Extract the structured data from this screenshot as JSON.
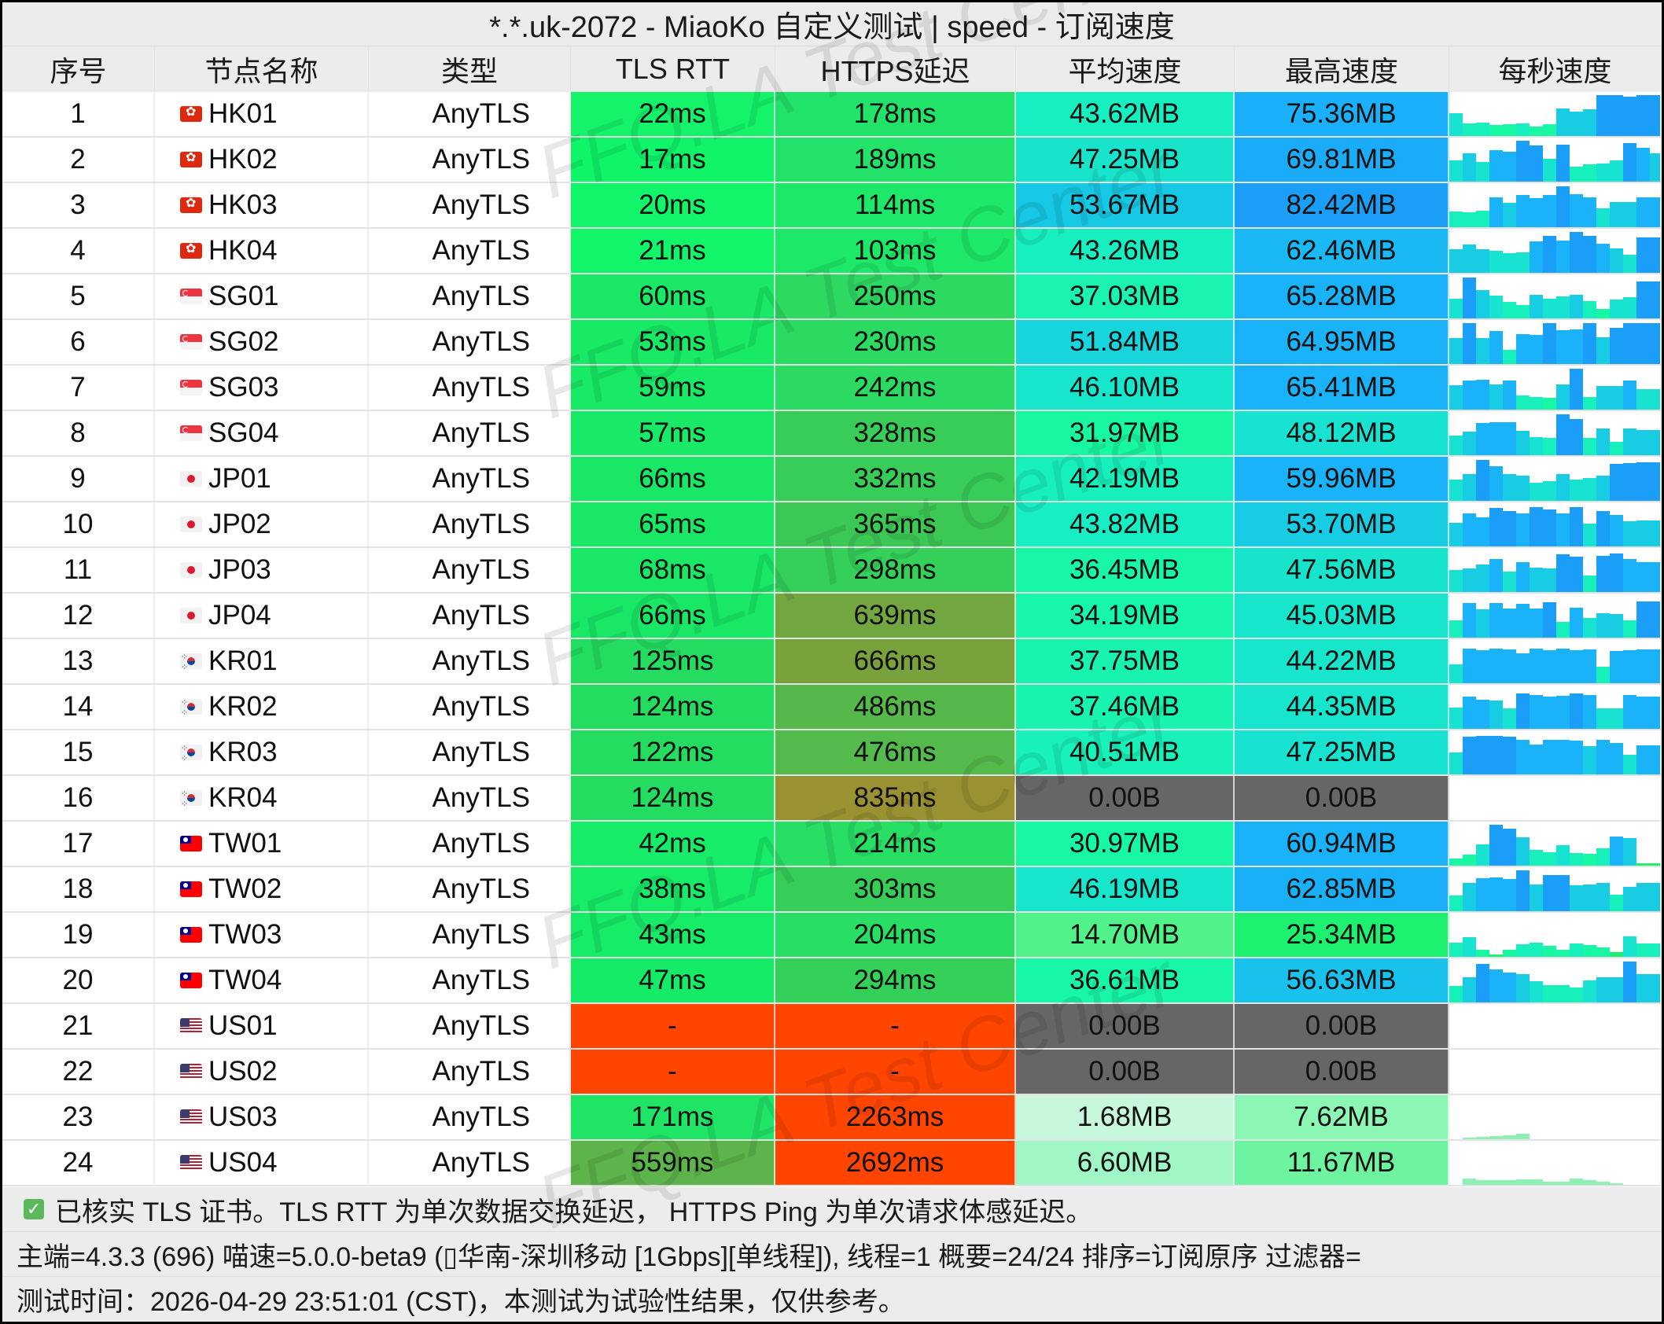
{
  "window": {
    "title": "*.*.uk-2072 - MiaoKo 自定义测试 | speed - 订阅速度"
  },
  "table": {
    "headers": [
      "序号",
      "节点名称",
      "类型",
      "TLS RTT",
      "HTTPS延迟",
      "平均速度",
      "最高速度",
      "每秒速度"
    ],
    "rows": [
      {
        "idx": "1",
        "flag": "hk",
        "name": "HK01",
        "type": "AnyTLS",
        "tls": "22ms",
        "https": "178ms",
        "avg": "43.62MB",
        "max": "75.36MB",
        "c": [
          "#14f36a",
          "#22e36a",
          "#18efc0",
          "#1ab0fc"
        ]
      },
      {
        "idx": "2",
        "flag": "hk",
        "name": "HK02",
        "type": "AnyTLS",
        "tls": "17ms",
        "https": "189ms",
        "avg": "47.25MB",
        "max": "69.81MB",
        "c": [
          "#10f46a",
          "#22e26a",
          "#18e4cc",
          "#1aacf8"
        ]
      },
      {
        "idx": "3",
        "flag": "hk",
        "name": "HK03",
        "type": "AnyTLS",
        "tls": "20ms",
        "https": "114ms",
        "avg": "53.67MB",
        "max": "82.42MB",
        "c": [
          "#12f46a",
          "#1ee869",
          "#16c8e4",
          "#1a9ef8"
        ]
      },
      {
        "idx": "4",
        "flag": "hk",
        "name": "HK04",
        "type": "AnyTLS",
        "tls": "21ms",
        "https": "103ms",
        "avg": "43.26MB",
        "max": "62.46MB",
        "c": [
          "#12f46a",
          "#1ee869",
          "#18efc0",
          "#1ab8f4"
        ]
      },
      {
        "idx": "5",
        "flag": "sg",
        "name": "SG01",
        "type": "AnyTLS",
        "tls": "60ms",
        "https": "250ms",
        "avg": "37.03MB",
        "max": "65.28MB",
        "c": [
          "#1ae866",
          "#2ed962",
          "#1af4b0",
          "#1ab2f8"
        ]
      },
      {
        "idx": "6",
        "flag": "sg",
        "name": "SG02",
        "type": "AnyTLS",
        "tls": "53ms",
        "https": "230ms",
        "avg": "51.84MB",
        "max": "64.95MB",
        "c": [
          "#18ea66",
          "#2cda62",
          "#18d4dc",
          "#1ab2f8"
        ]
      },
      {
        "idx": "7",
        "flag": "sg",
        "name": "SG03",
        "type": "AnyTLS",
        "tls": "59ms",
        "https": "242ms",
        "avg": "46.10MB",
        "max": "65.41MB",
        "c": [
          "#18e966",
          "#2cd962",
          "#18e6cc",
          "#1ab2f8"
        ]
      },
      {
        "idx": "8",
        "flag": "sg",
        "name": "SG04",
        "type": "AnyTLS",
        "tls": "57ms",
        "https": "328ms",
        "avg": "31.97MB",
        "max": "48.12MB",
        "c": [
          "#18e966",
          "#38cc58",
          "#18f8a0",
          "#18e2d0"
        ]
      },
      {
        "idx": "9",
        "flag": "jp",
        "name": "JP01",
        "type": "AnyTLS",
        "tls": "66ms",
        "https": "332ms",
        "avg": "42.19MB",
        "max": "59.96MB",
        "c": [
          "#18e866",
          "#38cc58",
          "#18f0bc",
          "#1ab2f8"
        ]
      },
      {
        "idx": "10",
        "flag": "jp",
        "name": "JP02",
        "type": "AnyTLS",
        "tls": "65ms",
        "https": "365ms",
        "avg": "43.82MB",
        "max": "53.70MB",
        "c": [
          "#18e866",
          "#3cc855",
          "#18eec4",
          "#18cce4"
        ]
      },
      {
        "idx": "11",
        "flag": "jp",
        "name": "JP03",
        "type": "AnyTLS",
        "tls": "68ms",
        "https": "298ms",
        "avg": "36.45MB",
        "max": "47.56MB",
        "c": [
          "#18e866",
          "#34d05a",
          "#18f6a8",
          "#18e4cc"
        ]
      },
      {
        "idx": "12",
        "flag": "jp",
        "name": "JP04",
        "type": "AnyTLS",
        "tls": "66ms",
        "https": "639ms",
        "avg": "34.19MB",
        "max": "45.03MB",
        "c": [
          "#18e866",
          "#72a640",
          "#18f6ac",
          "#18e6cc"
        ]
      },
      {
        "idx": "13",
        "flag": "kr",
        "name": "KR01",
        "type": "AnyTLS",
        "tls": "125ms",
        "https": "666ms",
        "avg": "37.75MB",
        "max": "44.22MB",
        "c": [
          "#24dd60",
          "#7aa23c",
          "#18f4b0",
          "#18e6cc"
        ]
      },
      {
        "idx": "14",
        "flag": "kr",
        "name": "KR02",
        "type": "AnyTLS",
        "tls": "124ms",
        "https": "486ms",
        "avg": "37.46MB",
        "max": "44.35MB",
        "c": [
          "#24dd60",
          "#56b84a",
          "#18f4b0",
          "#18e6cc"
        ]
      },
      {
        "idx": "15",
        "flag": "kr",
        "name": "KR03",
        "type": "AnyTLS",
        "tls": "122ms",
        "https": "476ms",
        "avg": "40.51MB",
        "max": "47.25MB",
        "c": [
          "#24dd60",
          "#54ba4b",
          "#18f2b8",
          "#18e2d0"
        ]
      },
      {
        "idx": "16",
        "flag": "kr",
        "name": "KR04",
        "type": "AnyTLS",
        "tls": "124ms",
        "https": "835ms",
        "avg": "0.00B",
        "max": "0.00B",
        "c": [
          "#24dd60",
          "#9a9232",
          "#666666",
          "#666666"
        ]
      },
      {
        "idx": "17",
        "flag": "tw",
        "name": "TW01",
        "type": "AnyTLS",
        "tls": "42ms",
        "https": "214ms",
        "avg": "30.97MB",
        "max": "60.94MB",
        "c": [
          "#16ec68",
          "#28de64",
          "#18f8a4",
          "#1ab2f8"
        ]
      },
      {
        "idx": "18",
        "flag": "tw",
        "name": "TW02",
        "type": "AnyTLS",
        "tls": "38ms",
        "https": "303ms",
        "avg": "46.19MB",
        "max": "62.85MB",
        "c": [
          "#16ec68",
          "#36ce59",
          "#18e6cc",
          "#1ab0f8"
        ]
      },
      {
        "idx": "19",
        "flag": "tw",
        "name": "TW03",
        "type": "AnyTLS",
        "tls": "43ms",
        "https": "204ms",
        "avg": "14.70MB",
        "max": "25.34MB",
        "c": [
          "#16ec68",
          "#28de64",
          "#52f28a",
          "#1ef070"
        ]
      },
      {
        "idx": "20",
        "flag": "tw",
        "name": "TW04",
        "type": "AnyTLS",
        "tls": "47ms",
        "https": "294ms",
        "avg": "36.61MB",
        "max": "56.63MB",
        "c": [
          "#16eb68",
          "#34d05a",
          "#18f6a8",
          "#18c2ec"
        ]
      },
      {
        "idx": "21",
        "flag": "us",
        "name": "US01",
        "type": "AnyTLS",
        "tls": "-",
        "https": "-",
        "avg": "0.00B",
        "max": "0.00B",
        "c": [
          "#ff4500",
          "#ff4500",
          "#666666",
          "#666666"
        ]
      },
      {
        "idx": "22",
        "flag": "us",
        "name": "US02",
        "type": "AnyTLS",
        "tls": "-",
        "https": "-",
        "avg": "0.00B",
        "max": "0.00B",
        "c": [
          "#ff4500",
          "#ff4500",
          "#666666",
          "#666666"
        ]
      },
      {
        "idx": "23",
        "flag": "us",
        "name": "US03",
        "type": "AnyTLS",
        "tls": "171ms",
        "https": "2263ms",
        "avg": "1.68MB",
        "max": "7.62MB",
        "c": [
          "#20e466",
          "#ff4500",
          "#c8f8dc",
          "#8cf6b4"
        ]
      },
      {
        "idx": "24",
        "flag": "us",
        "name": "US04",
        "type": "AnyTLS",
        "tls": "559ms",
        "https": "2692ms",
        "avg": "6.60MB",
        "max": "11.67MB",
        "c": [
          "#5cb44a",
          "#ff4500",
          "#a0f6c4",
          "#6ef4a0"
        ]
      }
    ],
    "sparklines": [
      [
        55,
        30,
        32,
        26,
        28,
        30,
        24,
        28,
        68,
        60,
        66,
        100,
        100,
        96,
        100,
        100
      ],
      [
        52,
        70,
        48,
        76,
        74,
        100,
        88,
        56,
        90,
        36,
        42,
        44,
        52,
        94,
        82,
        70
      ],
      [
        38,
        36,
        40,
        74,
        60,
        78,
        72,
        78,
        100,
        80,
        74,
        46,
        62,
        62,
        74,
        74
      ],
      [
        58,
        70,
        58,
        54,
        48,
        50,
        76,
        90,
        78,
        100,
        90,
        72,
        60,
        44,
        86,
        86
      ],
      [
        48,
        100,
        70,
        56,
        40,
        32,
        58,
        48,
        54,
        58,
        42,
        24,
        46,
        52,
        90,
        90
      ],
      [
        64,
        100,
        64,
        80,
        34,
        74,
        72,
        100,
        82,
        84,
        100,
        66,
        88,
        100,
        100,
        100
      ],
      [
        60,
        72,
        74,
        62,
        72,
        34,
        30,
        28,
        62,
        100,
        30,
        58,
        58,
        72,
        50,
        50
      ],
      [
        48,
        58,
        78,
        80,
        80,
        60,
        44,
        42,
        100,
        88,
        42,
        66,
        32,
        66,
        62,
        62
      ],
      [
        52,
        66,
        100,
        84,
        66,
        62,
        44,
        48,
        66,
        52,
        56,
        62,
        90,
        92,
        94,
        94
      ],
      [
        58,
        80,
        72,
        94,
        86,
        80,
        96,
        90,
        80,
        96,
        56,
        86,
        76,
        62,
        64,
        64
      ],
      [
        54,
        58,
        68,
        80,
        50,
        74,
        60,
        58,
        92,
        86,
        40,
        88,
        94,
        80,
        74,
        74
      ],
      [
        42,
        84,
        70,
        84,
        72,
        82,
        72,
        86,
        38,
        74,
        48,
        60,
        58,
        42,
        88,
        88
      ],
      [
        46,
        84,
        80,
        84,
        82,
        74,
        84,
        80,
        84,
        80,
        82,
        40,
        78,
        80,
        82,
        82
      ],
      [
        52,
        78,
        72,
        70,
        50,
        86,
        82,
        78,
        80,
        86,
        82,
        50,
        50,
        82,
        78,
        78
      ],
      [
        54,
        92,
        94,
        94,
        92,
        84,
        74,
        84,
        84,
        82,
        70,
        84,
        76,
        48,
        72,
        72
      ],
      [],
      [
        18,
        26,
        52,
        100,
        90,
        70,
        38,
        32,
        50,
        30,
        28,
        42,
        72,
        68,
        6,
        6
      ],
      [
        38,
        70,
        80,
        82,
        78,
        100,
        66,
        88,
        88,
        64,
        66,
        70,
        40,
        60,
        70,
        70
      ],
      [
        34,
        48,
        18,
        6,
        18,
        30,
        34,
        26,
        18,
        32,
        28,
        24,
        12,
        50,
        32,
        32
      ],
      [
        40,
        62,
        94,
        80,
        74,
        70,
        52,
        42,
        42,
        36,
        54,
        62,
        62,
        100,
        70,
        70
      ],
      [],
      [],
      [
        0,
        4,
        6,
        8,
        10,
        14,
        0,
        0,
        0,
        0,
        0,
        0,
        0,
        0,
        0,
        0
      ],
      [
        0,
        16,
        12,
        12,
        12,
        14,
        14,
        8,
        8,
        16,
        12,
        8,
        4,
        0,
        0,
        0
      ]
    ]
  },
  "footer": {
    "line1": "已核实 TLS 证书。TLS RTT 为单次数据交换延迟， HTTPS Ping 为单次请求体感延迟。",
    "line2": "主端=4.3.3 (696) 喵速=5.0.0-beta9 (▯华南-深圳移动 [1Gbps][单线程]), 线程=1 概要=24/24 排序=订阅原序 过滤器=",
    "line3": "测试时间：2026-04-29 23:51:01 (CST)，本测试为试验性结果，仅供参考。"
  },
  "watermark": "FFQ.LA Test Center"
}
